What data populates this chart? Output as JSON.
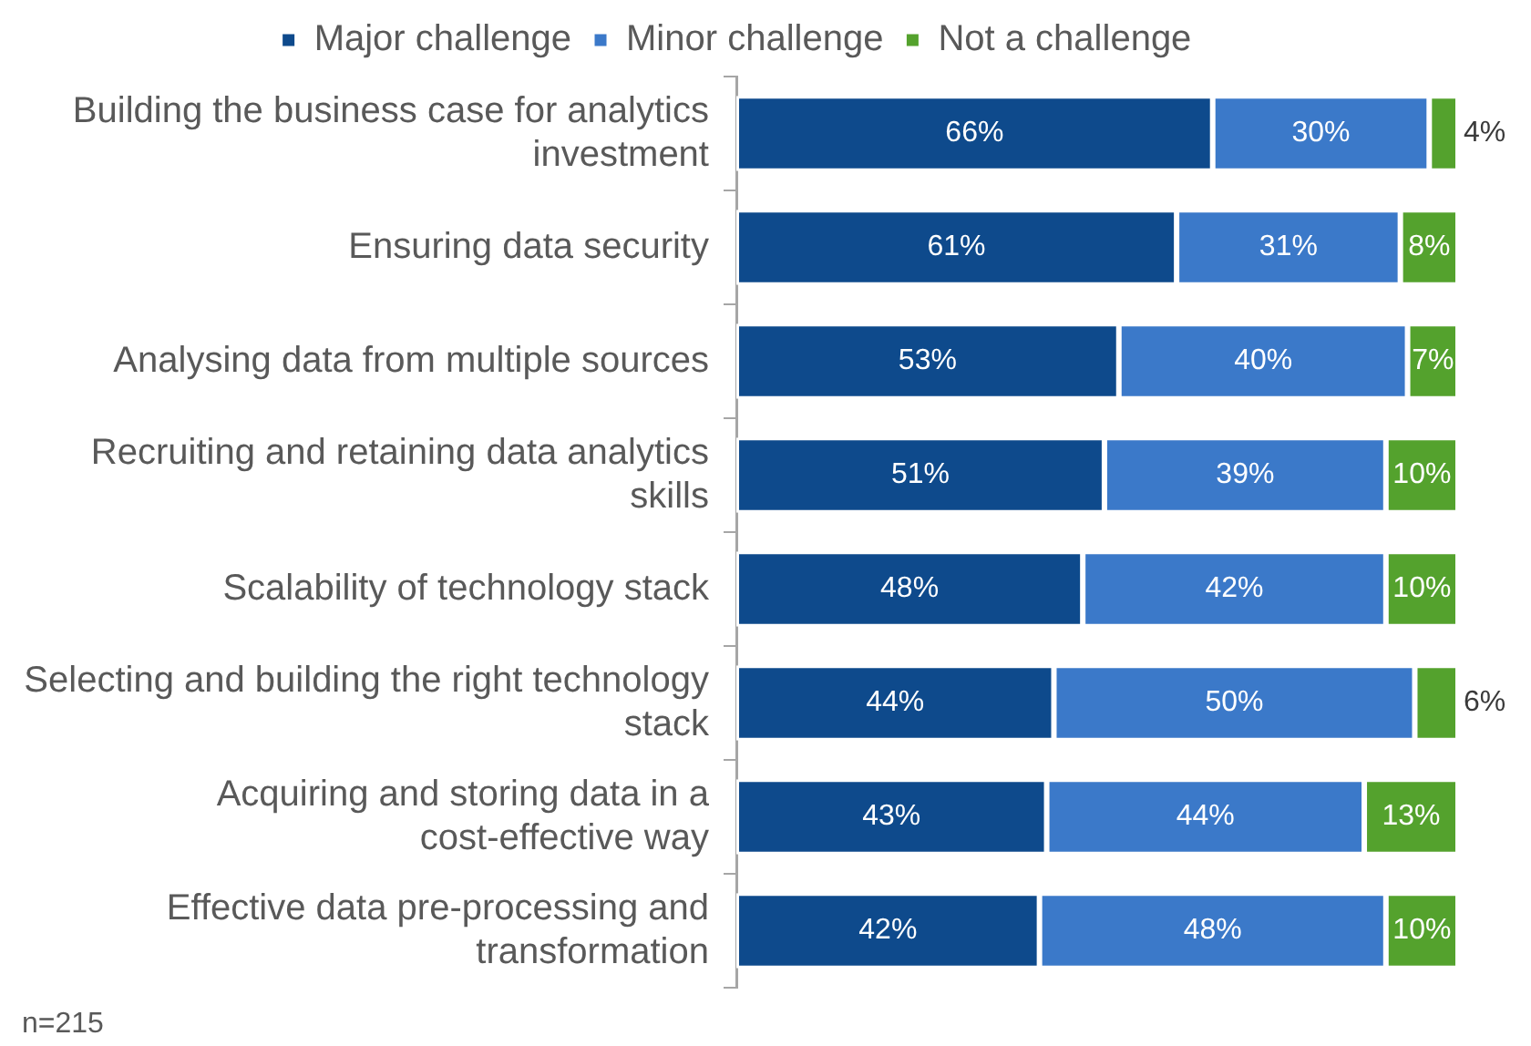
{
  "chart_data": {
    "type": "bar",
    "orientation": "horizontal",
    "stacked": true,
    "categories": [
      "Building the business case for analytics investment",
      "Ensuring data security",
      "Analysing data from multiple sources",
      "Recruiting and retaining data analytics skills",
      "Scalability of technology stack",
      "Selecting and building the right technology stack",
      "Acquiring and storing data in a cost-effective way",
      "Effective data pre-processing and transformation"
    ],
    "series": [
      {
        "name": "Major challenge",
        "color": "#0e4a8c",
        "values": [
          66,
          61,
          53,
          51,
          48,
          44,
          43,
          42
        ],
        "value_labels": [
          "66%",
          "61%",
          "53%",
          "51%",
          "48%",
          "44%",
          "43%",
          "42%"
        ]
      },
      {
        "name": "Minor challenge",
        "color": "#3b79c9",
        "values": [
          30,
          31,
          40,
          39,
          42,
          50,
          44,
          48
        ],
        "value_labels": [
          "30%",
          "31%",
          "40%",
          "39%",
          "42%",
          "50%",
          "44%",
          "48%"
        ]
      },
      {
        "name": "Not a challenge",
        "color": "#54a22d",
        "values": [
          4,
          8,
          7,
          10,
          10,
          6,
          13,
          10
        ],
        "value_labels": [
          "4%",
          "8%",
          "7%",
          "10%",
          "10%",
          "6%",
          "13%",
          "10%"
        ]
      }
    ],
    "xlim": [
      0,
      100
    ],
    "tick_labels": "y",
    "grid": false,
    "legend": "top",
    "annotations": [
      "n=215"
    ]
  }
}
